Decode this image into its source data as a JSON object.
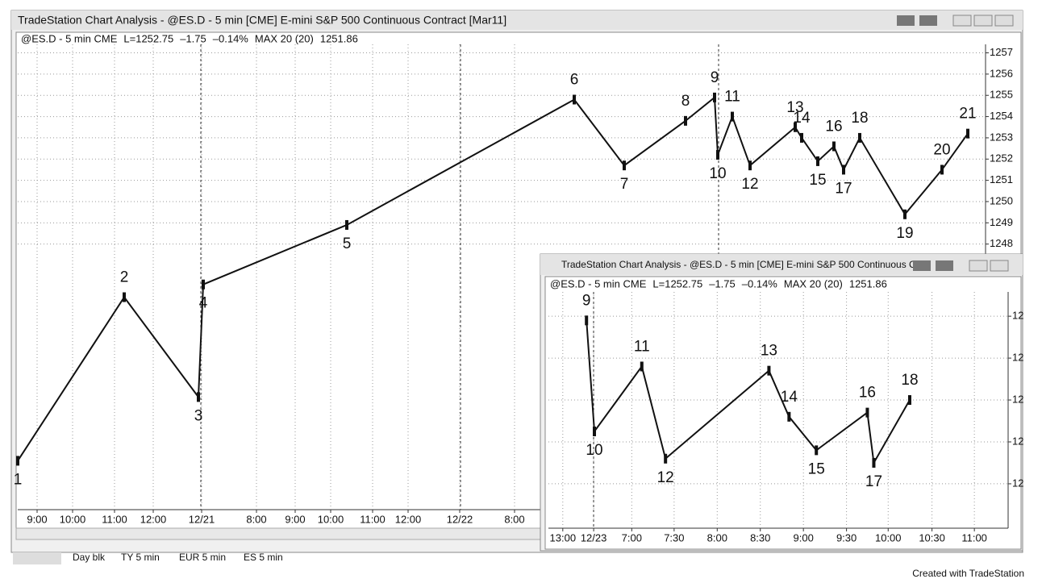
{
  "window": {
    "title": "TradeStation Chart Analysis - @ES.D - 5 min [CME] E-mini S&P 500 Continuous Contract [Mar11]",
    "symbol": "@ES.D - 5 min CME",
    "last": "L=1252.75",
    "change": "–1.75",
    "change_pct": "–0.14%",
    "indicator": "MAX 20 (20)",
    "indicator_value": "1251.86",
    "chart": {
      "xlim": [
        0,
        300
      ],
      "ylim": [
        1235.5,
        1257.4
      ],
      "yticks": [
        1248,
        1249,
        1250,
        1251,
        1252,
        1253,
        1254,
        1255,
        1256,
        1257
      ],
      "xticks": [
        {
          "value": 6,
          "label": "9:00"
        },
        {
          "value": 17,
          "label": "10:00"
        },
        {
          "value": 30,
          "label": "11:00"
        },
        {
          "value": 42,
          "label": "12:00"
        },
        {
          "value": 57,
          "label": "12/21"
        },
        {
          "value": 74,
          "label": "8:00"
        },
        {
          "value": 86,
          "label": "9:00"
        },
        {
          "value": 97,
          "label": "10:00"
        },
        {
          "value": 110,
          "label": "11:00"
        },
        {
          "value": 121,
          "label": "12:00"
        },
        {
          "value": 137,
          "label": "12/22"
        },
        {
          "value": 154,
          "label": "8:00"
        }
      ],
      "points": [
        {
          "label": "1",
          "x": 0,
          "y": 1237.8,
          "position": "below"
        },
        {
          "label": "2",
          "x": 33,
          "y": 1245.5,
          "position": "above"
        },
        {
          "label": "3",
          "x": 56,
          "y": 1240.8,
          "position": "below"
        },
        {
          "label": "4",
          "x": 57.5,
          "y": 1246.1,
          "position": "below"
        },
        {
          "label": "5",
          "x": 102,
          "y": 1248.9,
          "position": "below"
        },
        {
          "label": "6",
          "x": 172.5,
          "y": 1254.8,
          "position": "above"
        },
        {
          "label": "7",
          "x": 188,
          "y": 1251.7,
          "position": "below"
        },
        {
          "label": "8",
          "x": 207,
          "y": 1253.8,
          "position": "above"
        },
        {
          "label": "9",
          "x": 216,
          "y": 1254.9,
          "position": "above"
        },
        {
          "label": "10",
          "x": 217,
          "y": 1252.2,
          "position": "below"
        },
        {
          "label": "11",
          "x": 221.5,
          "y": 1254,
          "position": "above"
        },
        {
          "label": "12",
          "x": 227,
          "y": 1251.7,
          "position": "below"
        },
        {
          "label": "13",
          "x": 241,
          "y": 1253.5,
          "position": "above"
        },
        {
          "label": "14",
          "x": 243,
          "y": 1253,
          "position": "above"
        },
        {
          "label": "15",
          "x": 248,
          "y": 1251.9,
          "position": "below"
        },
        {
          "label": "16",
          "x": 253,
          "y": 1252.6,
          "position": "above"
        },
        {
          "label": "17",
          "x": 256,
          "y": 1251.5,
          "position": "below"
        },
        {
          "label": "18",
          "x": 261,
          "y": 1253,
          "position": "above"
        },
        {
          "label": "19",
          "x": 275,
          "y": 1249.4,
          "position": "below"
        },
        {
          "label": "20",
          "x": 286.5,
          "y": 1251.5,
          "position": "above"
        },
        {
          "label": "21",
          "x": 294.5,
          "y": 1253.2,
          "position": "above"
        }
      ]
    }
  },
  "inset": {
    "title": "TradeStation Chart Analysis - @ES.D - 5 min [CME] E-mini S&P 500 Continuous C...",
    "symbol": "@ES.D - 5 min CME",
    "last": "L=1252.75",
    "change": "–1.75",
    "change_pct": "–0.14%",
    "indicator": "MAX 20 (20)",
    "indicator_value": "1251.86",
    "chart": {
      "xlim": [
        0,
        64
      ],
      "ylim": [
        1249.94,
        1255.58
      ],
      "yticks": [
        {
          "value": 1255,
          "label": "12"
        },
        {
          "value": 1254,
          "label": "12"
        },
        {
          "value": 1253,
          "label": "12"
        },
        {
          "value": 1252,
          "label": "12"
        },
        {
          "value": 1251,
          "label": "12"
        }
      ],
      "xticks": [
        {
          "value": 2,
          "label": "13:00"
        },
        {
          "value": 6.3,
          "label": "12/23"
        },
        {
          "value": 11.6,
          "label": "7:00"
        },
        {
          "value": 17.5,
          "label": "7:30"
        },
        {
          "value": 23.5,
          "label": "8:00"
        },
        {
          "value": 29.5,
          "label": "8:30"
        },
        {
          "value": 35.5,
          "label": "9:00"
        },
        {
          "value": 41.5,
          "label": "9:30"
        },
        {
          "value": 47.3,
          "label": "10:00"
        },
        {
          "value": 53.4,
          "label": "10:30"
        },
        {
          "value": 59.3,
          "label": "11:00"
        }
      ],
      "points": [
        {
          "label": "9",
          "x": 5.3,
          "y": 1254.9,
          "position": "above"
        },
        {
          "label": "10",
          "x": 6.4,
          "y": 1252.25,
          "position": "below"
        },
        {
          "label": "11",
          "x": 13,
          "y": 1253.8,
          "position": "above"
        },
        {
          "label": "12",
          "x": 16.3,
          "y": 1251.6,
          "position": "below"
        },
        {
          "label": "13",
          "x": 30.7,
          "y": 1253.7,
          "position": "above"
        },
        {
          "label": "14",
          "x": 33.5,
          "y": 1252.6,
          "position": "above"
        },
        {
          "label": "15",
          "x": 37.3,
          "y": 1251.8,
          "position": "below"
        },
        {
          "label": "16",
          "x": 44.4,
          "y": 1252.7,
          "position": "above"
        },
        {
          "label": "17",
          "x": 45.3,
          "y": 1251.5,
          "position": "below"
        },
        {
          "label": "18",
          "x": 50.3,
          "y": 1253,
          "position": "above"
        }
      ]
    }
  },
  "tabs": [
    "Day blk",
    "TY 5 min",
    "EUR 5 min",
    "ES 5 min"
  ],
  "footer": "Created with TradeStation"
}
